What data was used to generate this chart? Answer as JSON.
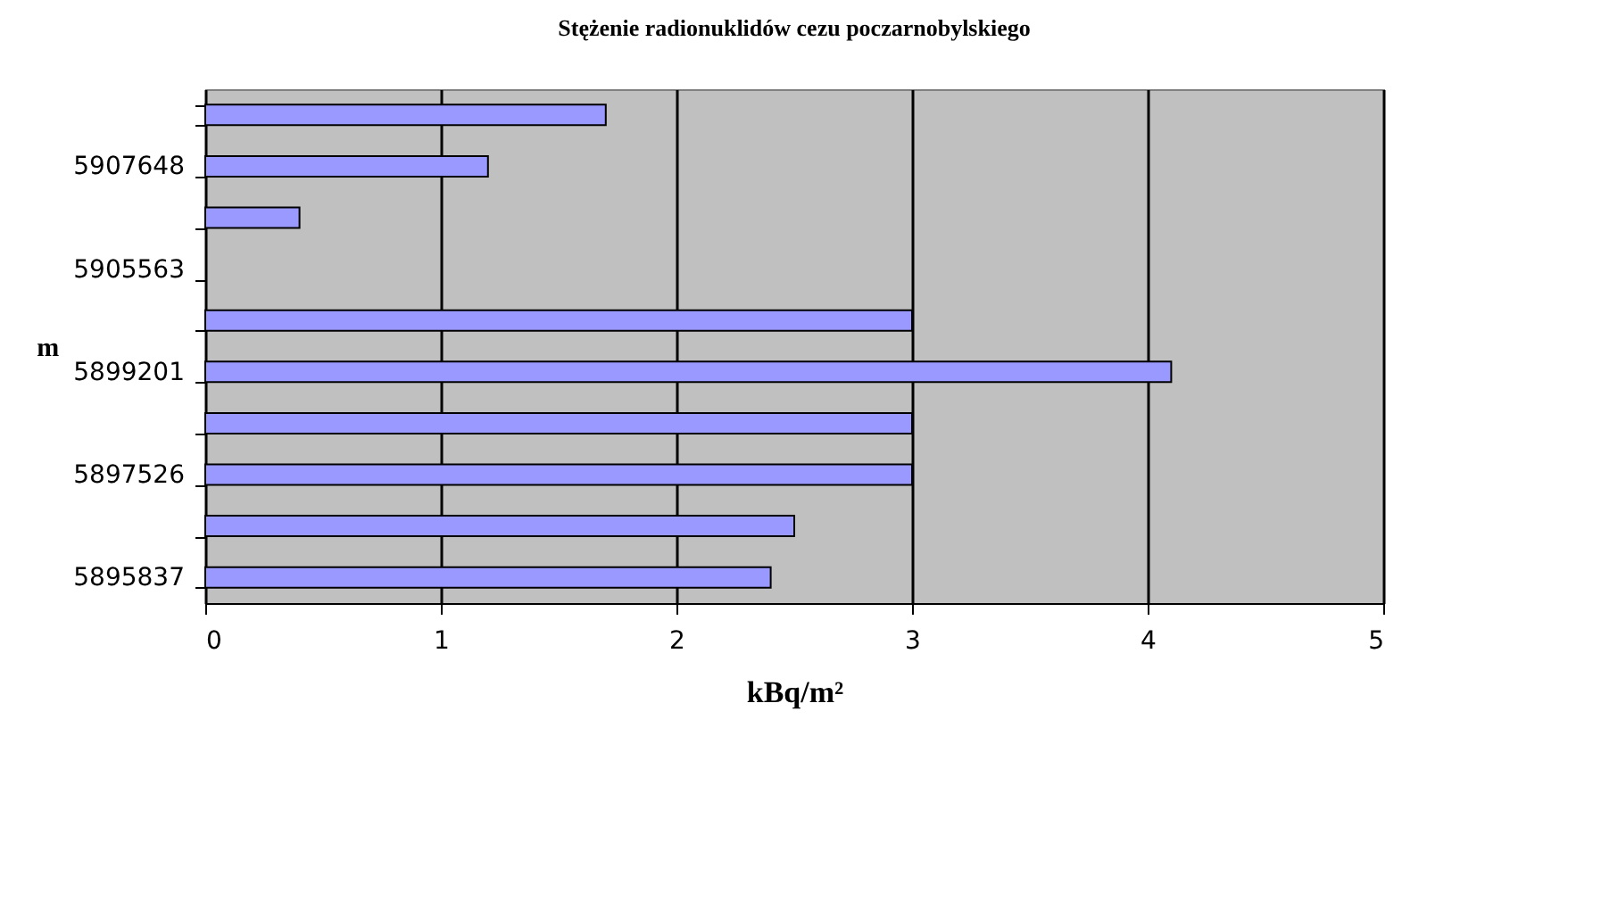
{
  "chart_data": {
    "type": "bar",
    "orientation": "horizontal",
    "title": "Stężenie radionuklidów cezu poczarnobylskiego",
    "xlabel": "kBq/m²",
    "ylabel": "m",
    "categories": [
      null,
      "5907648",
      null,
      "5905563",
      null,
      "5899201",
      null,
      "5897526",
      null,
      "5895837"
    ],
    "values": [
      1.7,
      1.2,
      0.4,
      null,
      3,
      4.1,
      3,
      3,
      2.5,
      2.4
    ],
    "color": "#9999ff",
    "xlim": [
      0,
      5
    ],
    "xticks": [
      0,
      1,
      2,
      3,
      4,
      5
    ],
    "grid": "x"
  }
}
